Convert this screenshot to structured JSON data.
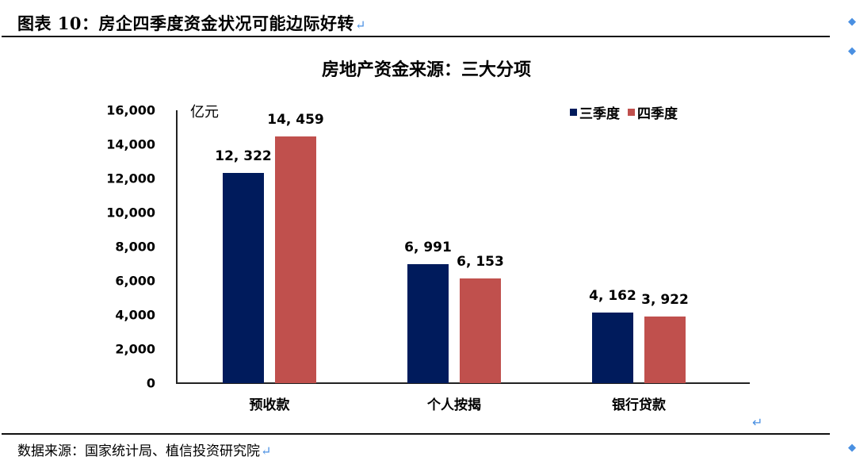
{
  "header": {
    "figure_title": "图表 10：房企四季度资金状况可能边际好转",
    "paragraph_mark": "↵"
  },
  "chart_data": {
    "type": "bar",
    "title": "房地产资金来源：三大分项",
    "ylabel": "亿元",
    "xlabel": "",
    "ylim": [
      0,
      16000
    ],
    "yticks": [
      "0",
      "2,000",
      "4,000",
      "6,000",
      "8,000",
      "10,000",
      "12,000",
      "14,000",
      "16,000"
    ],
    "categories": [
      "预收款",
      "个人按揭",
      "银行贷款"
    ],
    "series": [
      {
        "name": "三季度",
        "color": "#001b5c",
        "values": [
          12322,
          6991,
          4162
        ],
        "labels": [
          "12, 322",
          "6, 991",
          "4, 162"
        ]
      },
      {
        "name": "四季度",
        "color": "#c0504d",
        "values": [
          14459,
          6153,
          3922
        ],
        "labels": [
          "14, 459",
          "6, 153",
          "3, 922"
        ]
      }
    ],
    "legend_position": "top-right",
    "grid": false
  },
  "footer": {
    "source": "数据来源：国家统计局、植信投资研究院",
    "paragraph_mark": "↵"
  }
}
